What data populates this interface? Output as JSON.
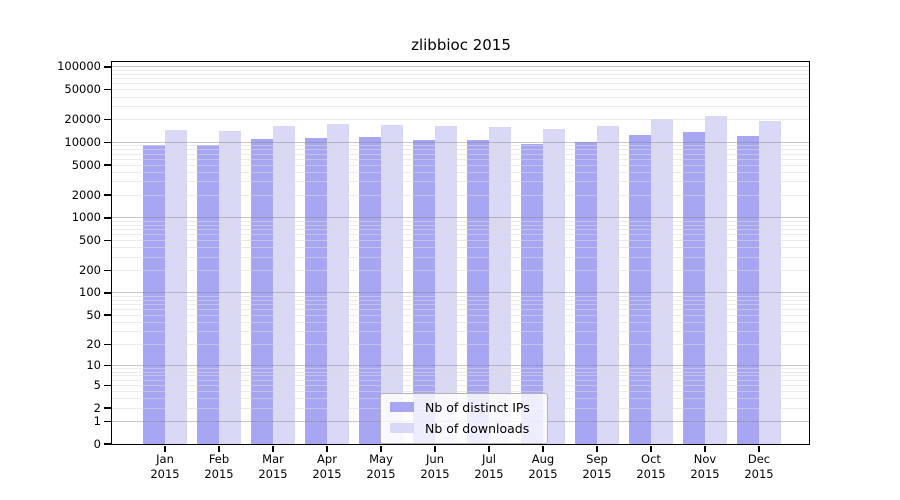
{
  "figure": {
    "title": "zlibbioc 2015"
  },
  "colors": {
    "distinct_ips": "#a6a6f2",
    "downloads": "#d9d9f7",
    "major_grid": "#bababa",
    "minor_grid": "#ececec",
    "spine": "#000000",
    "legend_border": "#b3b3b3"
  },
  "chart_data": {
    "type": "bar",
    "title": "zlibbioc 2015",
    "categories": [
      "Jan",
      "Feb",
      "Mar",
      "Apr",
      "May",
      "Jun",
      "Jul",
      "Aug",
      "Sep",
      "Oct",
      "Nov",
      "Dec"
    ],
    "category_year": "2015",
    "series": [
      {
        "name": "Nb of distinct IPs",
        "color": "#a6a6f2",
        "values": [
          9100,
          9150,
          11000,
          11200,
          11700,
          10750,
          10600,
          9300,
          10100,
          12500,
          13600,
          12100
        ]
      },
      {
        "name": "Nb of downloads",
        "color": "#d9d9f7",
        "values": [
          14500,
          14000,
          16500,
          17200,
          17000,
          16100,
          16000,
          14700,
          16500,
          20400,
          22300,
          18900
        ]
      }
    ],
    "yticks": [
      0,
      1,
      2,
      5,
      10,
      20,
      50,
      100,
      200,
      500,
      1000,
      2000,
      5000,
      10000,
      20000,
      50000,
      100000
    ],
    "yscale": "log1p",
    "ylim": [
      0,
      100000
    ],
    "grid": true,
    "legend_position": "lower-center",
    "xlabel": "",
    "ylabel": ""
  }
}
